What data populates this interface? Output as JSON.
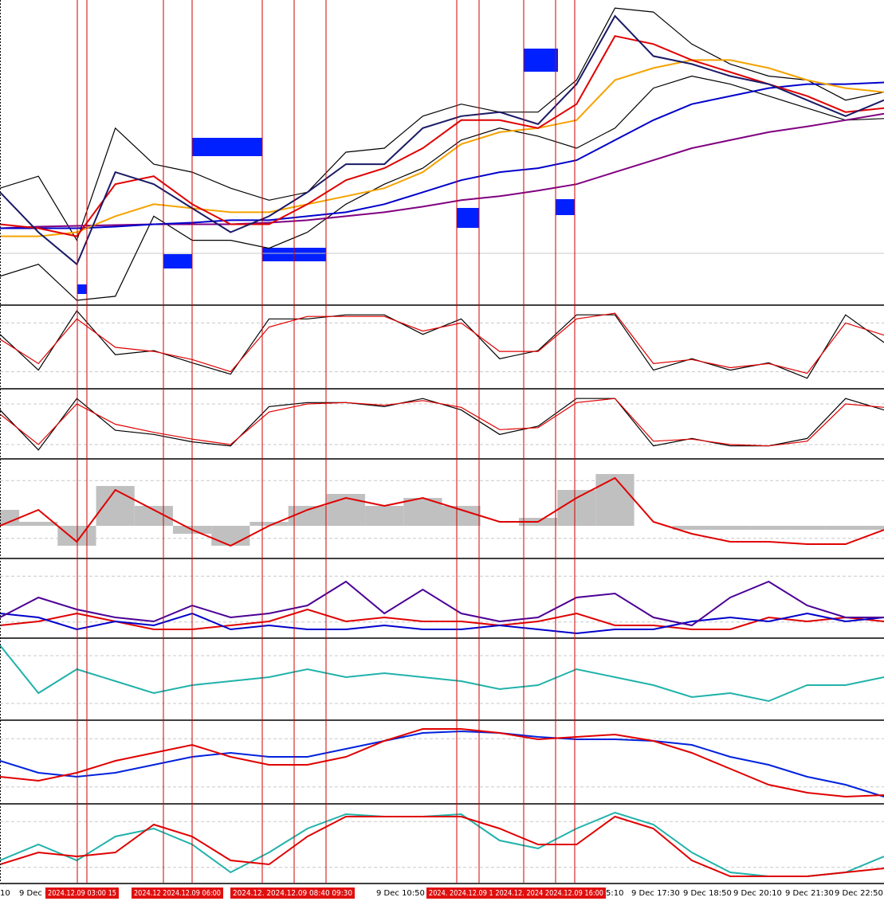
{
  "chart_data": [
    {
      "type": "line",
      "ylim": [
        0,
        380
      ],
      "categories": [
        null,
        null,
        null,
        null,
        null,
        null,
        null,
        null,
        null,
        null,
        null,
        null,
        null,
        null,
        null,
        null,
        null,
        null,
        null,
        null,
        null,
        null,
        null,
        null
      ],
      "series": [
        {
          "color": "#000000",
          "values": [
            145,
            160,
            80,
            220,
            175,
            165,
            145,
            130,
            140,
            190,
            195,
            235,
            250,
            240,
            240,
            280,
            370,
            365,
            325,
            300,
            285,
            280,
            255,
            265
          ]
        },
        {
          "color": "#000000",
          "values": [
            35,
            50,
            5,
            10,
            110,
            80,
            80,
            70,
            90,
            125,
            150,
            170,
            205,
            220,
            210,
            195,
            220,
            270,
            285,
            275,
            260,
            245,
            230,
            232
          ]
        },
        {
          "color": "#800080",
          "values": [
            95,
            97,
            98,
            99,
            100,
            100,
            100,
            102,
            105,
            110,
            115,
            122,
            130,
            135,
            142,
            150,
            165,
            180,
            195,
            205,
            215,
            222,
            230,
            238
          ]
        },
        {
          "color": "#0000cc",
          "values": [
            95,
            95,
            95,
            97,
            100,
            102,
            105,
            105,
            110,
            115,
            125,
            140,
            155,
            165,
            170,
            180,
            205,
            230,
            250,
            260,
            270,
            275,
            275,
            277
          ]
        },
        {
          "color": "#f5a300",
          "values": [
            85,
            85,
            90,
            110,
            125,
            120,
            115,
            115,
            125,
            135,
            145,
            165,
            200,
            215,
            220,
            230,
            280,
            295,
            305,
            305,
            295,
            280,
            270,
            265
          ]
        },
        {
          "color": "#e00000",
          "values": [
            100,
            95,
            85,
            150,
            160,
            125,
            100,
            100,
            125,
            155,
            170,
            195,
            230,
            230,
            220,
            250,
            335,
            325,
            305,
            290,
            275,
            260,
            240,
            245
          ]
        },
        {
          "color": "#1a1a66",
          "values": [
            140,
            90,
            50,
            165,
            150,
            120,
            90,
            110,
            140,
            175,
            175,
            220,
            235,
            240,
            225,
            275,
            360,
            310,
            300,
            285,
            275,
            255,
            235,
            255
          ]
        }
      ]
    },
    {
      "type": "line",
      "ylim": [
        0,
        100
      ],
      "categories": [
        null,
        null,
        null,
        null,
        null,
        null,
        null,
        null,
        null,
        null,
        null,
        null,
        null,
        null,
        null,
        null,
        null,
        null,
        null,
        null,
        null,
        null,
        null,
        null
      ],
      "series": [
        {
          "color": "#000000",
          "values": [
            66,
            22,
            95,
            41,
            46,
            31,
            17,
            85,
            85,
            90,
            90,
            66,
            85,
            36,
            46,
            90,
            90,
            22,
            36,
            22,
            31,
            12,
            90,
            56
          ]
        },
        {
          "color": "#e00000",
          "values": [
            60,
            30,
            85,
            50,
            45,
            35,
            20,
            75,
            88,
            88,
            88,
            70,
            80,
            45,
            45,
            85,
            92,
            30,
            35,
            25,
            30,
            18,
            80,
            65
          ]
        }
      ]
    },
    {
      "type": "line",
      "ylim": [
        0,
        100
      ],
      "categories": [
        null,
        null,
        null,
        null,
        null,
        null,
        null,
        null,
        null,
        null,
        null,
        null,
        null,
        null,
        null,
        null,
        null,
        null,
        null,
        null,
        null,
        null,
        null,
        null
      ],
      "series": [
        {
          "color": "#000000",
          "values": [
            71,
            12,
            88,
            41,
            35,
            24,
            18,
            76,
            82,
            82,
            76,
            88,
            71,
            35,
            47,
            88,
            88,
            18,
            29,
            18,
            18,
            29,
            88,
            71
          ]
        },
        {
          "color": "#e00000",
          "values": [
            65,
            20,
            80,
            50,
            38,
            28,
            20,
            68,
            80,
            82,
            78,
            85,
            75,
            42,
            45,
            82,
            88,
            25,
            28,
            20,
            18,
            25,
            80,
            75
          ]
        }
      ]
    },
    {
      "type": "combo",
      "ylim": [
        -40,
        81
      ],
      "categories": [
        null,
        null,
        null,
        null,
        null,
        null,
        null,
        null,
        null,
        null,
        null,
        null,
        null,
        null,
        null,
        null,
        null,
        null,
        null,
        null,
        null,
        null,
        null,
        null
      ],
      "series": [
        {
          "kind": "bar",
          "color": "#c0c0c0",
          "values": [
            20,
            5,
            -25,
            50,
            25,
            -10,
            -25,
            5,
            25,
            40,
            25,
            35,
            25,
            0,
            10,
            45,
            65,
            0,
            -5,
            -5,
            -5,
            -5,
            -5,
            -5
          ]
        },
        {
          "kind": "line",
          "color": "#e00000",
          "values": [
            0,
            20,
            -20,
            45,
            20,
            -5,
            -25,
            0,
            20,
            35,
            25,
            35,
            20,
            5,
            5,
            35,
            60,
            5,
            -10,
            -20,
            -20,
            -23,
            -23,
            -5
          ]
        }
      ]
    },
    {
      "type": "line",
      "ylim": [
        0,
        96
      ],
      "categories": [
        null,
        null,
        null,
        null,
        null,
        null,
        null,
        null,
        null,
        null,
        null,
        null,
        null,
        null,
        null,
        null,
        null,
        null,
        null,
        null,
        null,
        null,
        null,
        null
      ],
      "series": [
        {
          "color": "#e00000",
          "values": [
            15,
            20,
            30,
            20,
            10,
            10,
            15,
            20,
            35,
            20,
            25,
            20,
            20,
            15,
            20,
            30,
            15,
            15,
            10,
            10,
            25,
            20,
            25,
            20
          ]
        },
        {
          "color": "#0000cc",
          "values": [
            30,
            25,
            10,
            20,
            15,
            30,
            10,
            15,
            10,
            10,
            15,
            10,
            10,
            15,
            10,
            5,
            10,
            10,
            20,
            25,
            20,
            30,
            20,
            25
          ]
        },
        {
          "color": "#4b0096",
          "values": [
            25,
            50,
            35,
            25,
            20,
            40,
            25,
            30,
            40,
            70,
            30,
            60,
            30,
            20,
            25,
            50,
            55,
            25,
            15,
            50,
            70,
            40,
            25,
            25
          ]
        }
      ]
    },
    {
      "type": "line",
      "ylim": [
        0,
        100
      ],
      "categories": [
        null,
        null,
        null,
        null,
        null,
        null,
        null,
        null,
        null,
        null,
        null,
        null,
        null,
        null,
        null,
        null,
        null,
        null,
        null,
        null,
        null,
        null,
        null,
        null
      ],
      "series": [
        {
          "color": "#20b2aa",
          "values": [
            93,
            33,
            63,
            48,
            33,
            43,
            48,
            53,
            63,
            53,
            58,
            53,
            48,
            38,
            43,
            63,
            53,
            43,
            28,
            33,
            23,
            43,
            43,
            53
          ]
        }
      ]
    },
    {
      "type": "line",
      "ylim": [
        0,
        101
      ],
      "categories": [
        null,
        null,
        null,
        null,
        null,
        null,
        null,
        null,
        null,
        null,
        null,
        null,
        null,
        null,
        null,
        null,
        null,
        null,
        null,
        null,
        null,
        null,
        null,
        null
      ],
      "series": [
        {
          "color": "#0022dd",
          "values": [
            53,
            38,
            33,
            38,
            48,
            58,
            63,
            58,
            58,
            68,
            78,
            88,
            90,
            88,
            83,
            80,
            80,
            78,
            73,
            58,
            48,
            33,
            23,
            8
          ]
        },
        {
          "color": "#e00000",
          "values": [
            33,
            28,
            38,
            53,
            63,
            73,
            58,
            48,
            48,
            58,
            78,
            93,
            93,
            88,
            80,
            83,
            86,
            78,
            63,
            43,
            23,
            13,
            8,
            10
          ]
        }
      ]
    },
    {
      "type": "line",
      "ylim": [
        0,
        96
      ],
      "categories": [
        null,
        null,
        null,
        null,
        null,
        null,
        null,
        null,
        null,
        null,
        null,
        null,
        null,
        null,
        null,
        null,
        null,
        null,
        null,
        null,
        null,
        null,
        null,
        null
      ],
      "series": [
        {
          "color": "#20b2aa",
          "values": [
            28,
            48,
            28,
            58,
            68,
            48,
            13,
            38,
            68,
            86,
            83,
            83,
            86,
            53,
            43,
            68,
            88,
            73,
            38,
            13,
            8,
            8,
            13,
            33
          ]
        },
        {
          "color": "#e00000",
          "values": [
            23,
            38,
            33,
            38,
            73,
            58,
            28,
            23,
            58,
            83,
            83,
            83,
            83,
            68,
            48,
            48,
            83,
            68,
            28,
            8,
            8,
            8,
            13,
            18
          ]
        }
      ]
    }
  ],
  "time_axis": {
    "labels": [
      "10",
      "9 Dec 0",
      "9 Dec 10:50",
      "5:10",
      "9 Dec 17:30",
      "9 Dec 18:50",
      "9 Dec 20:10",
      "9 Dec 21:30",
      "9 Dec 22:50"
    ],
    "marker_labels": [
      "2024.12.09 03:00 15",
      "2024.12 2024.12.09 06:00",
      "2024.12.  2024.12.09 08:40  09:30",
      "2024.  2024.12.09 1  2024.12.  2024  2024.12.09 16:00"
    ]
  }
}
